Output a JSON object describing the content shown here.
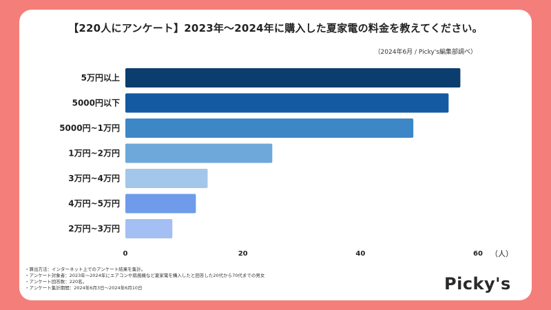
{
  "chart_data": {
    "type": "bar",
    "orientation": "horizontal",
    "title": "【220人にアンケート】2023年〜2024年に購入した夏家電の料金を教えてください。",
    "subtitle": "（2024年6月 / Picky's編集部調べ）",
    "categories": [
      "5万円以上",
      "5000円以下",
      "5000円~1万円",
      "1万円~2万円",
      "3万円~4万円",
      "4万円~5万円",
      "2万円~3万円"
    ],
    "values": [
      57,
      55,
      49,
      25,
      14,
      12,
      8
    ],
    "colors": [
      "#0b3d6e",
      "#135aa3",
      "#3d87c7",
      "#6ea7da",
      "#a3c6eb",
      "#6f9cea",
      "#a4bff3"
    ],
    "xlim": [
      0,
      60
    ],
    "xticks": [
      "0",
      "20",
      "40",
      "60"
    ],
    "xunit": "（人）",
    "grid": false,
    "legend": "none"
  },
  "notes": [
    "・算出方法：インターネット上でのアンケート結果を集計。",
    "・アンケート対象者：2023年〜2024年にエアコンや扇風機など夏家電を購入したと回答した20代から70代までの男女",
    "・アンケート回答数：220名。",
    "・アンケート集計期間：2024年6月3日〜2024年6月10日"
  ],
  "logo": "Picky's"
}
